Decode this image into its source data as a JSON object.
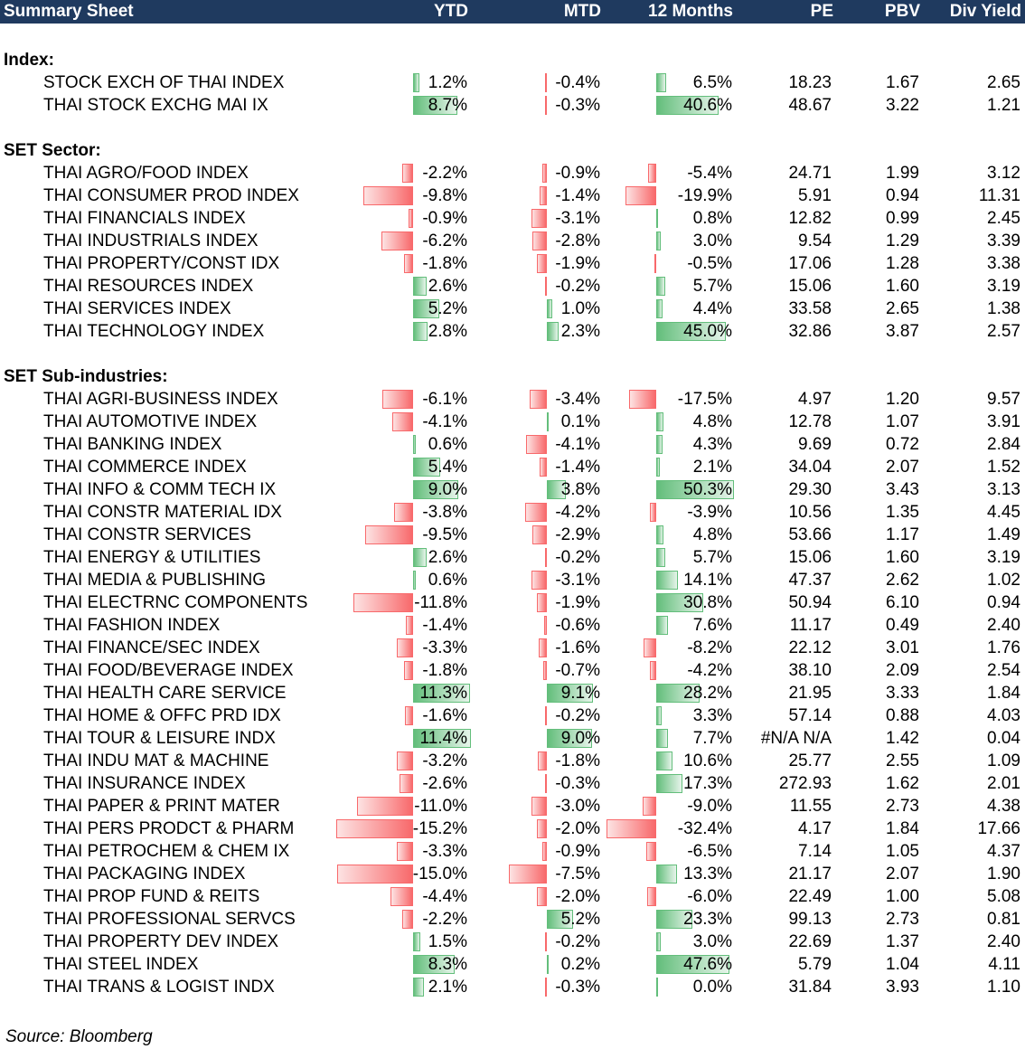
{
  "header": {
    "title": "Summary Sheet",
    "col_ytd": "YTD",
    "col_mtd": "MTD",
    "col_12m": "12 Months",
    "col_pe": "PE",
    "col_pbv": "PBV",
    "col_div": "Div Yield"
  },
  "colors": {
    "header_bg": "#1f3a5f",
    "positive_bar": "#63be7b",
    "negative_bar": "#f8696b"
  },
  "rows": [
    {
      "type": "section",
      "label": "Index:"
    },
    {
      "type": "data",
      "name": "STOCK EXCH OF THAI INDEX",
      "ytd": 1.2,
      "ytd_text": "1.2%",
      "mtd": -0.4,
      "mtd_text": "-0.4%",
      "m12": 6.5,
      "m12_text": "6.5%",
      "pe": "18.23",
      "pbv": "1.67",
      "div": "2.65"
    },
    {
      "type": "data",
      "name": "THAI STOCK EXCHG MAI IX",
      "ytd": 8.7,
      "ytd_text": "8.7%",
      "mtd": -0.3,
      "mtd_text": "-0.3%",
      "m12": 40.6,
      "m12_text": "40.6%",
      "pe": "48.67",
      "pbv": "3.22",
      "div": "1.21"
    },
    {
      "type": "section",
      "label": "SET Sector:"
    },
    {
      "type": "data",
      "name": "THAI AGRO/FOOD INDEX",
      "ytd": -2.2,
      "ytd_text": "-2.2%",
      "mtd": -0.9,
      "mtd_text": "-0.9%",
      "m12": -5.4,
      "m12_text": "-5.4%",
      "pe": "24.71",
      "pbv": "1.99",
      "div": "3.12"
    },
    {
      "type": "data",
      "name": "THAI CONSUMER PROD INDEX",
      "ytd": -9.8,
      "ytd_text": "-9.8%",
      "mtd": -1.4,
      "mtd_text": "-1.4%",
      "m12": -19.9,
      "m12_text": "-19.9%",
      "pe": "5.91",
      "pbv": "0.94",
      "div": "11.31"
    },
    {
      "type": "data",
      "name": "THAI FINANCIALS INDEX",
      "ytd": -0.9,
      "ytd_text": "-0.9%",
      "mtd": -3.1,
      "mtd_text": "-3.1%",
      "m12": 0.8,
      "m12_text": "0.8%",
      "pe": "12.82",
      "pbv": "0.99",
      "div": "2.45"
    },
    {
      "type": "data",
      "name": "THAI INDUSTRIALS INDEX",
      "ytd": -6.2,
      "ytd_text": "-6.2%",
      "mtd": -2.8,
      "mtd_text": "-2.8%",
      "m12": 3.0,
      "m12_text": "3.0%",
      "pe": "9.54",
      "pbv": "1.29",
      "div": "3.39"
    },
    {
      "type": "data",
      "name": "THAI PROPERTY/CONST IDX",
      "ytd": -1.8,
      "ytd_text": "-1.8%",
      "mtd": -1.9,
      "mtd_text": "-1.9%",
      "m12": -0.5,
      "m12_text": "-0.5%",
      "pe": "17.06",
      "pbv": "1.28",
      "div": "3.38"
    },
    {
      "type": "data",
      "name": "THAI RESOURCES INDEX",
      "ytd": 2.6,
      "ytd_text": "2.6%",
      "mtd": -0.2,
      "mtd_text": "-0.2%",
      "m12": 5.7,
      "m12_text": "5.7%",
      "pe": "15.06",
      "pbv": "1.60",
      "div": "3.19"
    },
    {
      "type": "data",
      "name": "THAI SERVICES INDEX",
      "ytd": 5.2,
      "ytd_text": "5.2%",
      "mtd": 1.0,
      "mtd_text": "1.0%",
      "m12": 4.4,
      "m12_text": "4.4%",
      "pe": "33.58",
      "pbv": "2.65",
      "div": "1.38"
    },
    {
      "type": "data",
      "name": "THAI TECHNOLOGY INDEX",
      "ytd": 2.8,
      "ytd_text": "2.8%",
      "mtd": 2.3,
      "mtd_text": "2.3%",
      "m12": 45.0,
      "m12_text": "45.0%",
      "pe": "32.86",
      "pbv": "3.87",
      "div": "2.57"
    },
    {
      "type": "section",
      "label": "SET Sub-industries:"
    },
    {
      "type": "data",
      "name": "THAI AGRI-BUSINESS INDEX",
      "ytd": -6.1,
      "ytd_text": "-6.1%",
      "mtd": -3.4,
      "mtd_text": "-3.4%",
      "m12": -17.5,
      "m12_text": "-17.5%",
      "pe": "4.97",
      "pbv": "1.20",
      "div": "9.57"
    },
    {
      "type": "data",
      "name": "THAI AUTOMOTIVE INDEX",
      "ytd": -4.1,
      "ytd_text": "-4.1%",
      "mtd": 0.1,
      "mtd_text": "0.1%",
      "m12": 4.8,
      "m12_text": "4.8%",
      "pe": "12.78",
      "pbv": "1.07",
      "div": "3.91"
    },
    {
      "type": "data",
      "name": "THAI BANKING INDEX",
      "ytd": 0.6,
      "ytd_text": "0.6%",
      "mtd": -4.1,
      "mtd_text": "-4.1%",
      "m12": 4.3,
      "m12_text": "4.3%",
      "pe": "9.69",
      "pbv": "0.72",
      "div": "2.84"
    },
    {
      "type": "data",
      "name": "THAI COMMERCE INDEX",
      "ytd": 5.4,
      "ytd_text": "5.4%",
      "mtd": -1.4,
      "mtd_text": "-1.4%",
      "m12": 2.1,
      "m12_text": "2.1%",
      "pe": "34.04",
      "pbv": "2.07",
      "div": "1.52"
    },
    {
      "type": "data",
      "name": "THAI INFO & COMM TECH IX",
      "ytd": 9.0,
      "ytd_text": "9.0%",
      "mtd": 3.8,
      "mtd_text": "3.8%",
      "m12": 50.3,
      "m12_text": "50.3%",
      "pe": "29.30",
      "pbv": "3.43",
      "div": "3.13"
    },
    {
      "type": "data",
      "name": "THAI CONSTR MATERIAL IDX",
      "ytd": -3.8,
      "ytd_text": "-3.8%",
      "mtd": -4.2,
      "mtd_text": "-4.2%",
      "m12": -3.9,
      "m12_text": "-3.9%",
      "pe": "10.56",
      "pbv": "1.35",
      "div": "4.45"
    },
    {
      "type": "data",
      "name": "THAI CONSTR SERVICES",
      "ytd": -9.5,
      "ytd_text": "-9.5%",
      "mtd": -2.9,
      "mtd_text": "-2.9%",
      "m12": 4.8,
      "m12_text": "4.8%",
      "pe": "53.66",
      "pbv": "1.17",
      "div": "1.49"
    },
    {
      "type": "data",
      "name": "THAI ENERGY & UTILITIES",
      "ytd": 2.6,
      "ytd_text": "2.6%",
      "mtd": -0.2,
      "mtd_text": "-0.2%",
      "m12": 5.7,
      "m12_text": "5.7%",
      "pe": "15.06",
      "pbv": "1.60",
      "div": "3.19"
    },
    {
      "type": "data",
      "name": "THAI MEDIA & PUBLISHING",
      "ytd": 0.6,
      "ytd_text": "0.6%",
      "mtd": -3.1,
      "mtd_text": "-3.1%",
      "m12": 14.1,
      "m12_text": "14.1%",
      "pe": "47.37",
      "pbv": "2.62",
      "div": "1.02"
    },
    {
      "type": "data",
      "name": "THAI ELECTRNC COMPONENTS",
      "ytd": -11.8,
      "ytd_text": "-11.8%",
      "mtd": -1.9,
      "mtd_text": "-1.9%",
      "m12": 30.8,
      "m12_text": "30.8%",
      "pe": "50.94",
      "pbv": "6.10",
      "div": "0.94"
    },
    {
      "type": "data",
      "name": "THAI FASHION INDEX",
      "ytd": -1.4,
      "ytd_text": "-1.4%",
      "mtd": -0.6,
      "mtd_text": "-0.6%",
      "m12": 7.6,
      "m12_text": "7.6%",
      "pe": "11.17",
      "pbv": "0.49",
      "div": "2.40"
    },
    {
      "type": "data",
      "name": "THAI FINANCE/SEC INDEX",
      "ytd": -3.3,
      "ytd_text": "-3.3%",
      "mtd": -1.6,
      "mtd_text": "-1.6%",
      "m12": -8.2,
      "m12_text": "-8.2%",
      "pe": "22.12",
      "pbv": "3.01",
      "div": "1.76"
    },
    {
      "type": "data",
      "name": "THAI FOOD/BEVERAGE INDEX",
      "ytd": -1.8,
      "ytd_text": "-1.8%",
      "mtd": -0.7,
      "mtd_text": "-0.7%",
      "m12": -4.2,
      "m12_text": "-4.2%",
      "pe": "38.10",
      "pbv": "2.09",
      "div": "2.54"
    },
    {
      "type": "data",
      "name": "THAI HEALTH CARE SERVICE",
      "ytd": 11.3,
      "ytd_text": "11.3%",
      "mtd": 9.1,
      "mtd_text": "9.1%",
      "m12": 28.2,
      "m12_text": "28.2%",
      "pe": "21.95",
      "pbv": "3.33",
      "div": "1.84"
    },
    {
      "type": "data",
      "name": "THAI HOME & OFFC PRD IDX",
      "ytd": -1.6,
      "ytd_text": "-1.6%",
      "mtd": -0.2,
      "mtd_text": "-0.2%",
      "m12": 3.3,
      "m12_text": "3.3%",
      "pe": "57.14",
      "pbv": "0.88",
      "div": "4.03"
    },
    {
      "type": "data",
      "name": "THAI TOUR & LEISURE INDX",
      "ytd": 11.4,
      "ytd_text": "11.4%",
      "mtd": 9.0,
      "mtd_text": "9.0%",
      "m12": 7.7,
      "m12_text": "7.7%",
      "pe": "#N/A N/A",
      "pbv": "1.42",
      "div": "0.04"
    },
    {
      "type": "data",
      "name": "THAI INDU MAT & MACHINE",
      "ytd": -3.2,
      "ytd_text": "-3.2%",
      "mtd": -1.8,
      "mtd_text": "-1.8%",
      "m12": 10.6,
      "m12_text": "10.6%",
      "pe": "25.77",
      "pbv": "2.55",
      "div": "1.09"
    },
    {
      "type": "data",
      "name": "THAI INSURANCE INDEX",
      "ytd": -2.6,
      "ytd_text": "-2.6%",
      "mtd": -0.3,
      "mtd_text": "-0.3%",
      "m12": 17.3,
      "m12_text": "17.3%",
      "pe": "272.93",
      "pbv": "1.62",
      "div": "2.01"
    },
    {
      "type": "data",
      "name": "THAI PAPER & PRINT MATER",
      "ytd": -11.0,
      "ytd_text": "-11.0%",
      "mtd": -3.0,
      "mtd_text": "-3.0%",
      "m12": -9.0,
      "m12_text": "-9.0%",
      "pe": "11.55",
      "pbv": "2.73",
      "div": "4.38"
    },
    {
      "type": "data",
      "name": "THAI PERS PRODCT & PHARM",
      "ytd": -15.2,
      "ytd_text": "-15.2%",
      "mtd": -2.0,
      "mtd_text": "-2.0%",
      "m12": -32.4,
      "m12_text": "-32.4%",
      "pe": "4.17",
      "pbv": "1.84",
      "div": "17.66"
    },
    {
      "type": "data",
      "name": "THAI PETROCHEM & CHEM IX",
      "ytd": -3.3,
      "ytd_text": "-3.3%",
      "mtd": -0.9,
      "mtd_text": "-0.9%",
      "m12": -6.5,
      "m12_text": "-6.5%",
      "pe": "7.14",
      "pbv": "1.05",
      "div": "4.37"
    },
    {
      "type": "data",
      "name": "THAI PACKAGING INDEX",
      "ytd": -15.0,
      "ytd_text": "-15.0%",
      "mtd": -7.5,
      "mtd_text": "-7.5%",
      "m12": 13.3,
      "m12_text": "13.3%",
      "pe": "21.17",
      "pbv": "2.07",
      "div": "1.90"
    },
    {
      "type": "data",
      "name": "THAI PROP FUND & REITS",
      "ytd": -4.4,
      "ytd_text": "-4.4%",
      "mtd": -2.0,
      "mtd_text": "-2.0%",
      "m12": -6.0,
      "m12_text": "-6.0%",
      "pe": "22.49",
      "pbv": "1.00",
      "div": "5.08"
    },
    {
      "type": "data",
      "name": "THAI PROFESSIONAL SERVCS",
      "ytd": -2.2,
      "ytd_text": "-2.2%",
      "mtd": 5.2,
      "mtd_text": "5.2%",
      "m12": 23.3,
      "m12_text": "23.3%",
      "pe": "99.13",
      "pbv": "2.73",
      "div": "0.81"
    },
    {
      "type": "data",
      "name": "THAI PROPERTY DEV INDEX",
      "ytd": 1.5,
      "ytd_text": "1.5%",
      "mtd": -0.2,
      "mtd_text": "-0.2%",
      "m12": 3.0,
      "m12_text": "3.0%",
      "pe": "22.69",
      "pbv": "1.37",
      "div": "2.40"
    },
    {
      "type": "data",
      "name": "THAI STEEL INDEX",
      "ytd": 8.3,
      "ytd_text": "8.3%",
      "mtd": 0.2,
      "mtd_text": "0.2%",
      "m12": 47.6,
      "m12_text": "47.6%",
      "pe": "5.79",
      "pbv": "1.04",
      "div": "4.11"
    },
    {
      "type": "data",
      "name": "THAI TRANS & LOGIST INDX",
      "ytd": 2.1,
      "ytd_text": "2.1%",
      "mtd": -0.3,
      "mtd_text": "-0.3%",
      "m12": 0.0,
      "m12_text": "0.0%",
      "pe": "31.84",
      "pbv": "3.93",
      "div": "1.10"
    }
  ],
  "footer": {
    "source": "Source: Bloomberg"
  }
}
